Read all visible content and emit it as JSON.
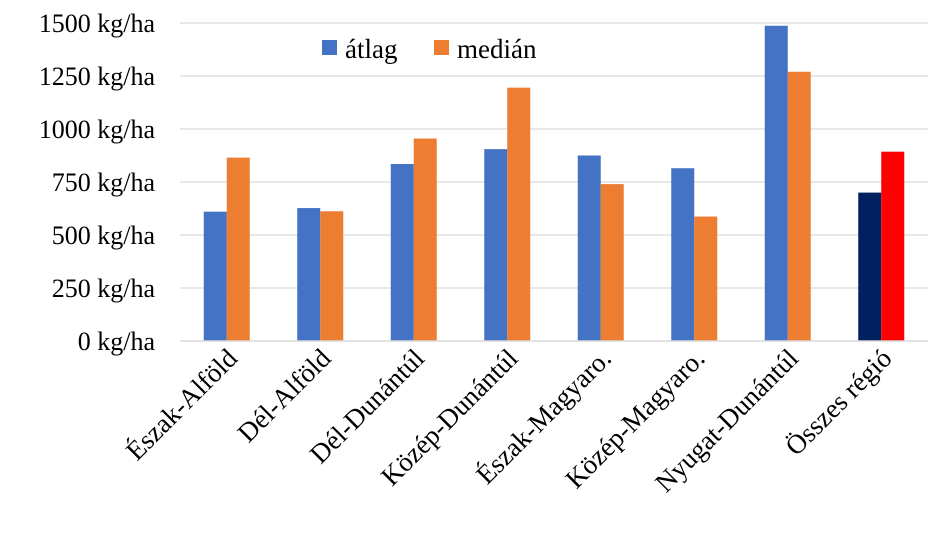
{
  "chart_data": {
    "type": "bar",
    "categories": [
      "Észak-Alföld",
      "Dél-Alföld",
      "Dél-Dunántúl",
      "Közép-Dunántúl",
      "Észak-Magyaro.",
      "Közép-Magyaro.",
      "Nyugat-Dunántúl",
      "Összes régió"
    ],
    "series": [
      {
        "name": "átlag",
        "color": "#4472C4",
        "values": [
          610,
          627,
          835,
          905,
          875,
          815,
          1487,
          700
        ],
        "point_colors": [
          null,
          null,
          null,
          null,
          null,
          null,
          null,
          "#002060"
        ]
      },
      {
        "name": "medián",
        "color": "#ED7D31",
        "values": [
          865,
          612,
          955,
          1195,
          740,
          587,
          1270,
          893
        ],
        "point_colors": [
          null,
          null,
          null,
          null,
          null,
          null,
          null,
          "#FF0000"
        ]
      }
    ],
    "ylim": [
      0,
      1500
    ],
    "yticks": [
      0,
      250,
      500,
      750,
      1000,
      1250,
      1500
    ],
    "ytick_labels": [
      "0 kg/ha",
      "250 kg/ha",
      "500 kg/ha",
      "750 kg/ha",
      "1000 kg/ha",
      "1250 kg/ha",
      "1500 kg/ha"
    ],
    "grid": true,
    "legend_position": "top-center",
    "title": "",
    "xlabel": "",
    "ylabel": ""
  }
}
